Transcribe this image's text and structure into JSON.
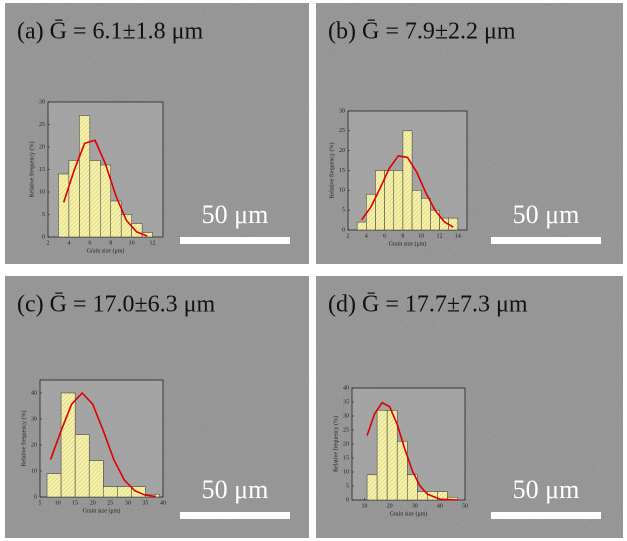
{
  "chart_data": [
    {
      "type": "histogram",
      "title": "(a) Ḡ = 6.1±1.8 μm",
      "annotation": "50 μm",
      "xlabel": "Grain size (μm)",
      "ylabel": "Relative frequency (%)",
      "bins": [
        3,
        4,
        5,
        6,
        7,
        8,
        9,
        10,
        11,
        12
      ],
      "values": [
        14,
        17,
        27,
        17,
        16,
        8,
        5,
        3,
        1
      ],
      "color": "#f6f1a4",
      "xlim": [
        2,
        13
      ],
      "xticks": [
        2,
        4,
        6,
        8,
        10,
        12
      ],
      "ylim": [
        0,
        30
      ],
      "yticks": [
        0,
        5,
        10,
        15,
        20,
        25,
        30
      ],
      "fit": {
        "color": "#e00000",
        "x": [
          3.5,
          4.5,
          5.5,
          6.5,
          7.5,
          8.5,
          9.5,
          10.5,
          11.5
        ],
        "y": [
          7.7,
          14.8,
          20.8,
          21.5,
          16.2,
          9.1,
          3.7,
          1.1,
          0.2
        ]
      }
    },
    {
      "type": "histogram",
      "title": "(b) Ḡ = 7.9±2.2 μm",
      "annotation": "50 μm",
      "xlabel": "Grain size (μm)",
      "ylabel": "Relative frequency (%)",
      "bins": [
        3,
        4,
        5,
        6,
        7,
        8,
        9,
        10,
        11,
        12,
        13,
        14
      ],
      "values": [
        2,
        9,
        15,
        15,
        15,
        25,
        10,
        8,
        5,
        3,
        3
      ],
      "color": "#f6f1a4",
      "xlim": [
        2,
        15
      ],
      "xticks": [
        2,
        4,
        6,
        8,
        10,
        12,
        14
      ],
      "ylim": [
        0,
        30
      ],
      "yticks": [
        0,
        5,
        10,
        15,
        20,
        25,
        30
      ],
      "fit": {
        "color": "#e00000",
        "x": [
          3.5,
          4.5,
          5.5,
          6.5,
          7.5,
          8.5,
          9.5,
          10.5,
          11.5,
          12.5,
          13.5
        ],
        "y": [
          2.6,
          5.8,
          10.5,
          15.5,
          18.7,
          18.3,
          14.6,
          9.4,
          5.0,
          2.1,
          0.7
        ]
      }
    },
    {
      "type": "histogram",
      "title": "(c) Ḡ = 17.0±6.3 μm",
      "annotation": "50 μm",
      "xlabel": "Grain size (μm)",
      "ylabel": "Relative frequency (%)",
      "bins": [
        7,
        11,
        15,
        19,
        23,
        27,
        31,
        35,
        39
      ],
      "values": [
        9,
        40,
        24,
        14,
        4,
        4,
        4,
        1
      ],
      "color": "#f6f1a4",
      "xlim": [
        5,
        40
      ],
      "xticks": [
        5,
        10,
        15,
        20,
        25,
        30,
        35,
        40
      ],
      "ylim": [
        0,
        45
      ],
      "yticks": [
        0,
        10,
        20,
        30,
        40
      ],
      "fit": {
        "color": "#e00000",
        "x": [
          8,
          11,
          14,
          17,
          20,
          23,
          26,
          29,
          32,
          35,
          38
        ],
        "y": [
          14.4,
          25.5,
          35.7,
          40,
          35.7,
          25.5,
          14.4,
          6.5,
          2.4,
          0.7,
          0.2
        ]
      }
    },
    {
      "type": "histogram",
      "title": "(d) Ḡ = 17.7±7.3 μm",
      "annotation": "50 μm",
      "xlabel": "Grain size (μm)",
      "ylabel": "Relative frequency (%)",
      "bins": [
        11,
        15,
        19,
        23,
        27,
        31,
        35,
        39,
        43,
        47
      ],
      "values": [
        9,
        32,
        32,
        21,
        9,
        3,
        3,
        3,
        1
      ],
      "color": "#f6f1a4",
      "xlim": [
        5,
        50
      ],
      "xticks": [
        10,
        20,
        30,
        40,
        50
      ],
      "ylim": [
        0,
        40
      ],
      "yticks": [
        0,
        5,
        10,
        15,
        20,
        25,
        30,
        35,
        40
      ],
      "fit": {
        "color": "#e00000",
        "x": [
          11,
          14,
          17,
          20,
          23,
          26,
          29,
          32,
          35,
          40,
          47
        ],
        "y": [
          23,
          30.8,
          34.8,
          33.3,
          27,
          18.3,
          10.5,
          5.1,
          2.1,
          0.3,
          0
        ]
      }
    }
  ]
}
